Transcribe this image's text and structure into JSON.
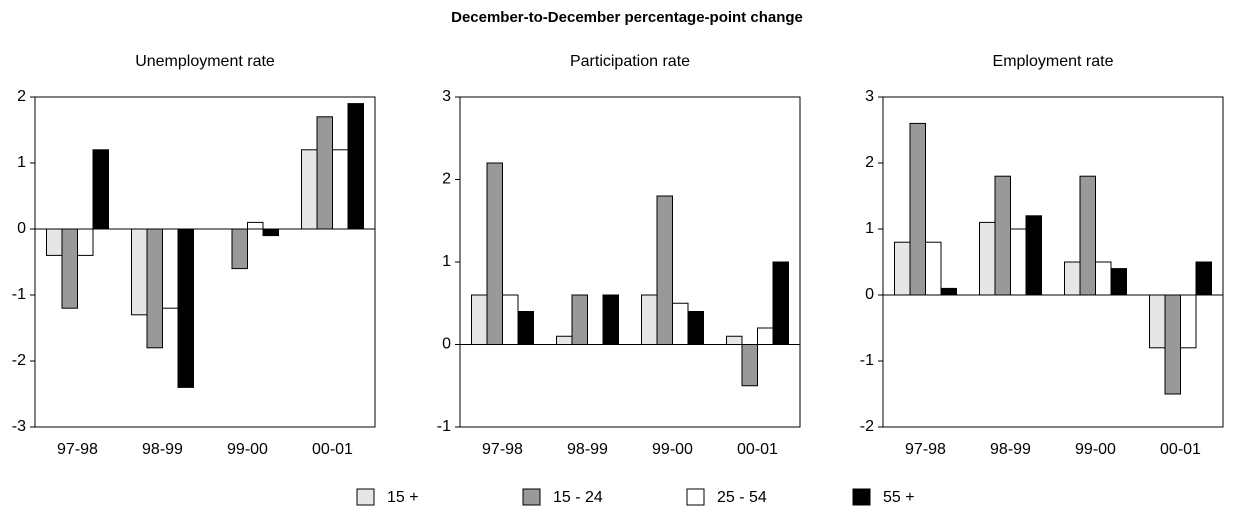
{
  "title": "December-to-December percentage-point change",
  "legend": [
    {
      "name": "15 +",
      "color": "#e6e6e6"
    },
    {
      "name": "15 - 24",
      "color": "#999999"
    },
    {
      "name": "25 - 54",
      "color": "#ffffff"
    },
    {
      "name": "55 +",
      "color": "#000000"
    }
  ],
  "chart_data": [
    {
      "type": "bar",
      "title": "Unemployment rate",
      "categories": [
        "97-98",
        "98-99",
        "99-00",
        "00-01"
      ],
      "series": [
        {
          "values": [
            -0.4,
            -1.3,
            0,
            1.2
          ]
        },
        {
          "values": [
            -1.2,
            -1.8,
            -0.6,
            1.7
          ]
        },
        {
          "values": [
            -0.4,
            -1.2,
            0.1,
            1.2
          ]
        },
        {
          "values": [
            1.2,
            -2.4,
            -0.1,
            1.9
          ]
        }
      ],
      "ylim": [
        -3,
        2
      ],
      "yticks": [
        -3,
        -2,
        -1,
        0,
        1,
        2
      ]
    },
    {
      "type": "bar",
      "title": "Participation rate",
      "categories": [
        "97-98",
        "98-99",
        "99-00",
        "00-01"
      ],
      "series": [
        {
          "values": [
            0.6,
            0.1,
            0.6,
            0.1
          ]
        },
        {
          "values": [
            2.2,
            0.6,
            1.8,
            -0.5
          ]
        },
        {
          "values": [
            0.6,
            0,
            0.5,
            0.2
          ]
        },
        {
          "values": [
            0.4,
            0.6,
            0.4,
            1.0
          ]
        }
      ],
      "ylim": [
        -1,
        3
      ],
      "yticks": [
        -1,
        0,
        1,
        2,
        3
      ]
    },
    {
      "type": "bar",
      "title": "Employment rate",
      "categories": [
        "97-98",
        "98-99",
        "99-00",
        "00-01"
      ],
      "series": [
        {
          "values": [
            0.8,
            1.1,
            0.5,
            -0.8
          ]
        },
        {
          "values": [
            2.6,
            1.8,
            1.8,
            -1.5
          ]
        },
        {
          "values": [
            0.8,
            1.0,
            0.5,
            -0.8
          ]
        },
        {
          "values": [
            0.1,
            1.2,
            0.4,
            0.5
          ]
        }
      ],
      "ylim": [
        -2,
        3
      ],
      "yticks": [
        -2,
        -1,
        0,
        1,
        2,
        3
      ]
    }
  ]
}
